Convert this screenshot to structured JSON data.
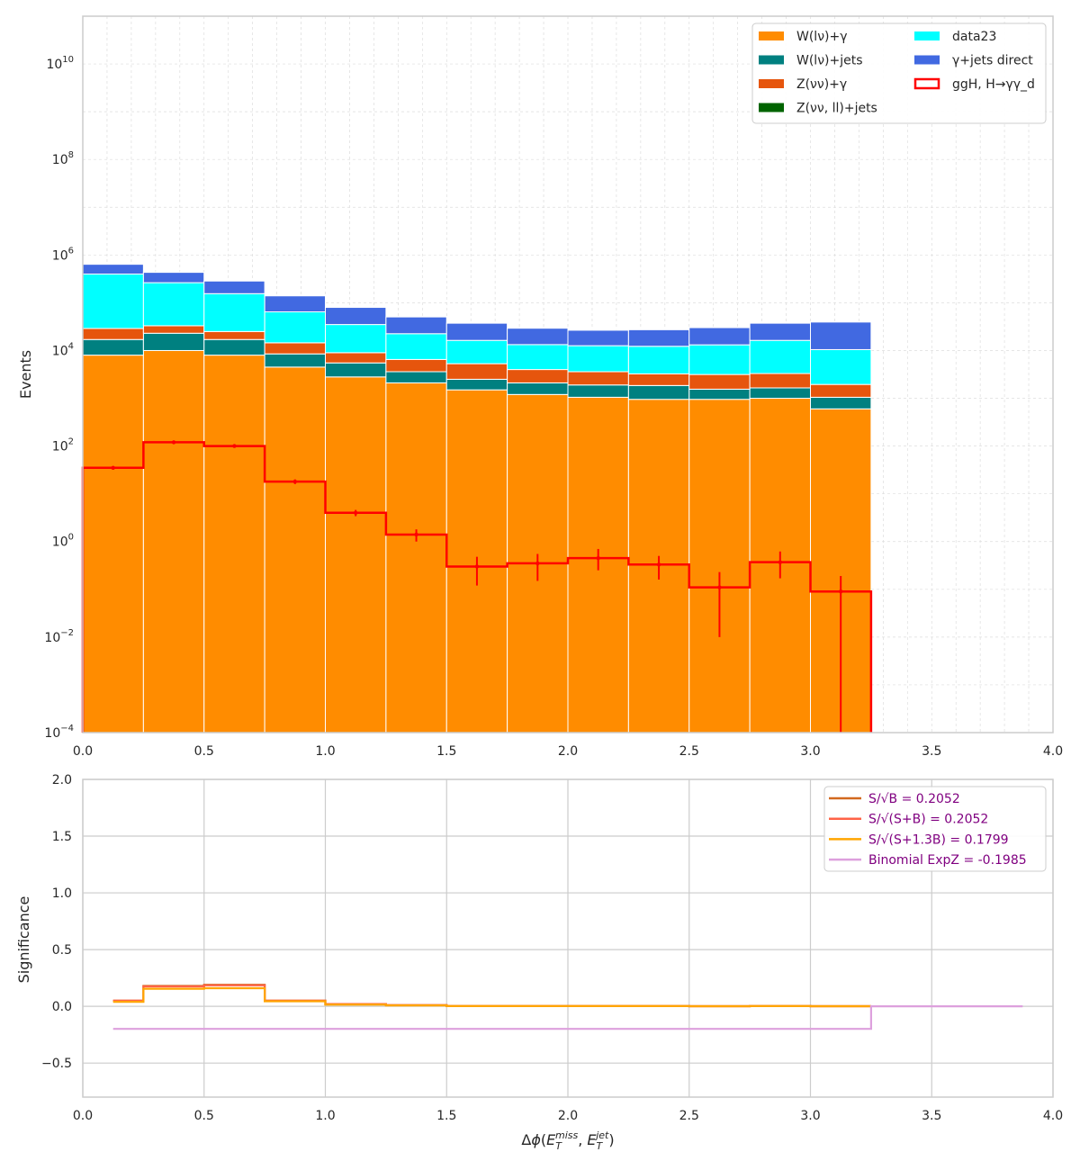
{
  "chart_data": [
    {
      "type": "bar",
      "subtype": "stacked-histogram-log",
      "x_bin_edges": [
        0.0,
        0.25,
        0.5,
        0.75,
        1.0,
        1.25,
        1.5,
        1.75,
        2.0,
        2.25,
        2.5,
        2.75,
        3.0,
        3.25
      ],
      "xlabel": "Δφ(E_T^miss, E_T^jet)",
      "ylabel": "Events",
      "xlim": [
        0,
        4
      ],
      "ylim": [
        0.0001,
        100000000000
      ],
      "y_scale": "log",
      "grid": true,
      "legend_position": "top-right",
      "x_ticks": [
        "0.0",
        "0.5",
        "1.0",
        "1.5",
        "2.0",
        "2.5",
        "3.0",
        "3.5",
        "4.0"
      ],
      "y_ticks": [
        {
          "base": "10",
          "exp": "10"
        },
        {
          "base": "10",
          "exp": "8"
        },
        {
          "base": "10",
          "exp": "6"
        },
        {
          "base": "10",
          "exp": "4"
        },
        {
          "base": "10",
          "exp": "2"
        },
        {
          "base": "10",
          "exp": "0"
        },
        {
          "base": "10",
          "exp": "−2"
        },
        {
          "base": "10",
          "exp": "−4"
        }
      ],
      "series": [
        {
          "name": "W(lν)+γ",
          "color": "#ff8c00",
          "values": [
            8000,
            10000,
            8000,
            4500,
            2800,
            2100,
            1500,
            1200,
            1050,
            950,
            950,
            1000,
            600
          ]
        },
        {
          "name": "W(lν)+jets",
          "color": "#008080",
          "values": [
            9000,
            13000,
            9000,
            4000,
            2700,
            1500,
            1000,
            900,
            850,
            900,
            600,
            650,
            450
          ]
        },
        {
          "name": "Z(νν)+γ",
          "color": "#e6550d",
          "values": [
            12000,
            10000,
            8000,
            6000,
            3500,
            2900,
            2800,
            1900,
            1700,
            1400,
            1600,
            1650,
            900
          ]
        },
        {
          "name": "Z(νν, ll)+jets",
          "color": "#006400",
          "values": [
            0,
            0,
            0,
            0,
            0,
            0,
            0,
            0,
            0,
            0,
            0,
            0,
            0
          ]
        },
        {
          "name": "data23",
          "color": "#00ffff",
          "values": [
            370000,
            230000,
            130000,
            50000,
            26000,
            16000,
            11000,
            9300,
            9000,
            9000,
            10000,
            13000,
            8500
          ]
        },
        {
          "name": "γ+jets direct",
          "color": "#4169e1",
          "values": [
            240000,
            170000,
            130000,
            75000,
            45000,
            28000,
            21000,
            16000,
            14000,
            15000,
            17000,
            21000,
            29000
          ]
        }
      ],
      "signal": {
        "name": "ggH, H→γγ_d",
        "color": "#ff0000",
        "values": [
          35,
          120,
          100,
          18,
          4,
          1.4,
          0.3,
          0.35,
          0.45,
          0.33,
          0.11,
          0.37,
          0.09
        ],
        "errors_low": [
          3,
          8,
          7,
          2,
          0.6,
          0.4,
          0.18,
          0.2,
          0.2,
          0.17,
          0.1,
          0.2,
          0.09
        ],
        "errors_high": [
          3,
          8,
          7,
          2,
          0.6,
          0.4,
          0.18,
          0.2,
          0.25,
          0.17,
          0.12,
          0.25,
          0.1
        ]
      }
    },
    {
      "type": "line",
      "subtype": "step",
      "xlabel": "Δφ(E_T^miss, E_T^jet)",
      "ylabel": "Significance",
      "xlim": [
        0,
        4
      ],
      "ylim": [
        -0.8,
        2.0
      ],
      "grid": true,
      "legend_position": "top-right",
      "x_ticks": [
        "0.0",
        "0.5",
        "1.0",
        "1.5",
        "2.0",
        "2.5",
        "3.0",
        "3.5",
        "4.0"
      ],
      "y_ticks": [
        "2.0",
        "1.5",
        "1.0",
        "0.5",
        "0.0",
        "−0.5"
      ],
      "x_bin_edges": [
        0.125,
        0.25,
        0.5,
        0.75,
        1.0,
        1.25,
        1.5,
        1.75,
        2.0,
        2.25,
        2.5,
        2.75,
        3.0,
        3.25
      ],
      "series": [
        {
          "name": "S/√B = 0.2052",
          "color": "#d2691e",
          "values": [
            0.05,
            0.18,
            0.19,
            0.05,
            0.02,
            0.01,
            0.002,
            0.002,
            0.002,
            0.002,
            0.001,
            0.002,
            0.001
          ]
        },
        {
          "name": "S/√(S+B) = 0.2052",
          "color": "#ff6347",
          "values": [
            0.05,
            0.175,
            0.185,
            0.05,
            0.02,
            0.01,
            0.002,
            0.002,
            0.002,
            0.002,
            0.001,
            0.002,
            0.001
          ]
        },
        {
          "name": "S/√(S+1.3B) = 0.1799",
          "color": "#ffa500",
          "values": [
            0.04,
            0.155,
            0.16,
            0.045,
            0.015,
            0.008,
            0.002,
            0.002,
            0.002,
            0.002,
            0.001,
            0.002,
            0.001
          ]
        },
        {
          "name": "Binomial ExpZ = -0.1985",
          "color": "#dda0dd",
          "x": [
            0.125,
            3.25,
            3.25,
            3.875
          ],
          "y": [
            -0.1985,
            -0.1985,
            0.0,
            0.0
          ]
        }
      ]
    }
  ]
}
